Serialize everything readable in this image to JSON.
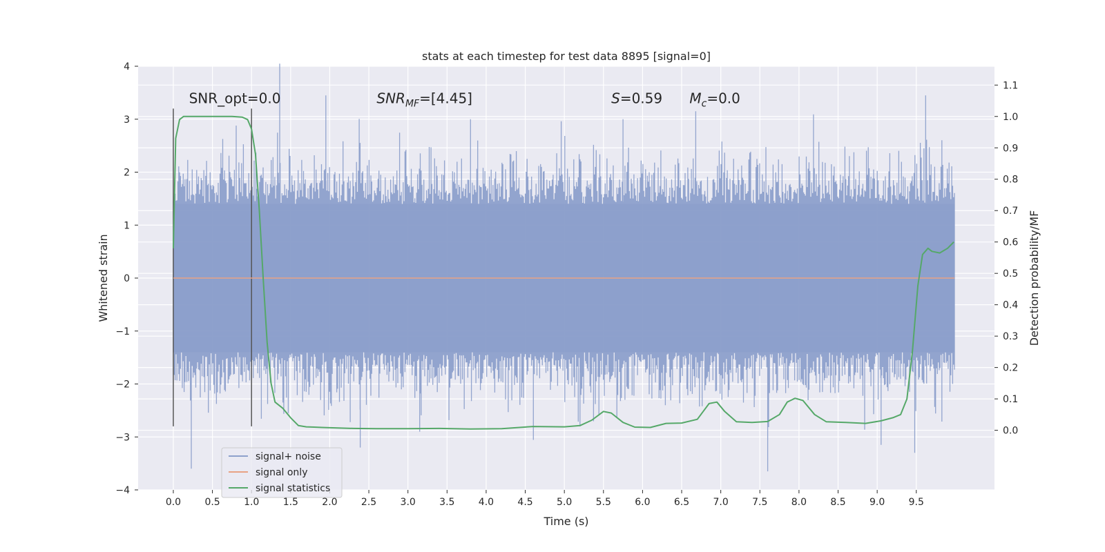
{
  "chart_data": {
    "type": "line",
    "title": "stats at each timestep for test data 8895 [signal=0]",
    "xlabel": "Time (s)",
    "ylabel": "Whitened strain",
    "y2label": "Detection probability/MF",
    "xlim": [
      -0.45,
      10.5
    ],
    "ylim": [
      -4.0,
      4.0
    ],
    "y2lim": [
      -0.19,
      1.16
    ],
    "x_ticks": [
      0.0,
      0.5,
      1.0,
      1.5,
      2.0,
      2.5,
      3.0,
      3.5,
      4.0,
      4.5,
      5.0,
      5.5,
      6.0,
      6.5,
      7.0,
      7.5,
      8.0,
      8.5,
      9.0,
      9.5
    ],
    "x_tick_labels": [
      "0.0",
      "0.5",
      "1.0",
      "1.5",
      "2.0",
      "2.5",
      "3.0",
      "3.5",
      "4.0",
      "4.5",
      "5.0",
      "5.5",
      "6.0",
      "6.5",
      "7.0",
      "7.5",
      "8.0",
      "8.5",
      "9.0",
      "9.5"
    ],
    "y_ticks": [
      -4,
      -3,
      -2,
      -1,
      0,
      1,
      2,
      3,
      4
    ],
    "y_tick_labels": [
      "−4",
      "−3",
      "−2",
      "−1",
      "0",
      "1",
      "2",
      "3",
      "4"
    ],
    "y2_ticks": [
      0.0,
      0.1,
      0.2,
      0.3,
      0.4,
      0.5,
      0.6,
      0.7,
      0.8,
      0.9,
      1.0,
      1.1
    ],
    "y2_tick_labels": [
      "0.0",
      "0.1",
      "0.2",
      "0.3",
      "0.4",
      "0.5",
      "0.6",
      "0.7",
      "0.8",
      "0.9",
      "1.0",
      "1.1"
    ],
    "grid": true,
    "legend_position": "lower-left",
    "annotations": [
      {
        "text": "SNR_opt=0.0",
        "x": 0.2,
        "y": 3.3
      },
      {
        "text": "SNR_MF=[4.45]",
        "x": 2.6,
        "y": 3.3
      },
      {
        "text": "S=0.59",
        "x": 5.6,
        "y": 3.3
      },
      {
        "text": "M_c=0.0",
        "x": 6.6,
        "y": 3.3
      }
    ],
    "window_markers": [
      {
        "x": 0.0,
        "y_min": -2.8,
        "y_max": 3.2
      },
      {
        "x": 1.0,
        "y_min": -2.8,
        "y_max": 3.2
      }
    ],
    "series": [
      {
        "name": "signal+ noise",
        "color": "#8da0cb",
        "axis": "left",
        "kind": "noise",
        "x_range": [
          0.0,
          9.99
        ],
        "typical_amplitude": 1.4,
        "peak_values": [
          {
            "x": 0.23,
            "y": -3.6
          },
          {
            "x": 1.36,
            "y": 4.05
          },
          {
            "x": 1.95,
            "y": 3.45
          },
          {
            "x": 2.39,
            "y": -3.2
          },
          {
            "x": 3.15,
            "y": -2.9
          },
          {
            "x": 3.8,
            "y": 3.0
          },
          {
            "x": 5.2,
            "y": -2.8
          },
          {
            "x": 5.75,
            "y": 3.0
          },
          {
            "x": 6.68,
            "y": 3.15
          },
          {
            "x": 7.6,
            "y": -3.65
          },
          {
            "x": 9.05,
            "y": -3.15
          },
          {
            "x": 9.48,
            "y": -3.3
          },
          {
            "x": 9.62,
            "y": 3.45
          }
        ]
      },
      {
        "name": "signal only",
        "color": "#e8a283",
        "axis": "left",
        "x": [
          0.0,
          9.99
        ],
        "values": [
          0.0,
          0.0
        ]
      },
      {
        "name": "signal statistics",
        "color": "#55a868",
        "axis": "right",
        "x": [
          0.0,
          0.03,
          0.08,
          0.13,
          0.2,
          0.3,
          0.45,
          0.6,
          0.75,
          0.88,
          0.95,
          1.0,
          1.05,
          1.1,
          1.15,
          1.2,
          1.25,
          1.3,
          1.35,
          1.4,
          1.5,
          1.6,
          1.7,
          1.8,
          1.9,
          2.0,
          2.3,
          2.6,
          3.0,
          3.4,
          3.8,
          4.2,
          4.6,
          5.0,
          5.2,
          5.35,
          5.5,
          5.6,
          5.75,
          5.9,
          6.1,
          6.3,
          6.5,
          6.7,
          6.85,
          6.95,
          7.05,
          7.2,
          7.4,
          7.6,
          7.75,
          7.85,
          7.95,
          8.05,
          8.2,
          8.35,
          8.6,
          8.85,
          9.05,
          9.2,
          9.3,
          9.38,
          9.45,
          9.52,
          9.58,
          9.65,
          9.7,
          9.8,
          9.9,
          9.98
        ],
        "values": [
          0.58,
          0.93,
          0.99,
          1.0,
          1.0,
          1.0,
          1.0,
          1.0,
          1.0,
          0.998,
          0.99,
          0.96,
          0.88,
          0.7,
          0.48,
          0.28,
          0.15,
          0.09,
          0.08,
          0.07,
          0.04,
          0.015,
          0.011,
          0.01,
          0.009,
          0.008,
          0.006,
          0.005,
          0.005,
          0.006,
          0.004,
          0.005,
          0.012,
          0.011,
          0.015,
          0.032,
          0.06,
          0.055,
          0.025,
          0.01,
          0.009,
          0.022,
          0.023,
          0.035,
          0.085,
          0.09,
          0.06,
          0.027,
          0.025,
          0.028,
          0.05,
          0.09,
          0.102,
          0.095,
          0.05,
          0.027,
          0.025,
          0.022,
          0.03,
          0.04,
          0.05,
          0.1,
          0.25,
          0.46,
          0.56,
          0.58,
          0.57,
          0.565,
          0.58,
          0.6
        ]
      }
    ]
  }
}
